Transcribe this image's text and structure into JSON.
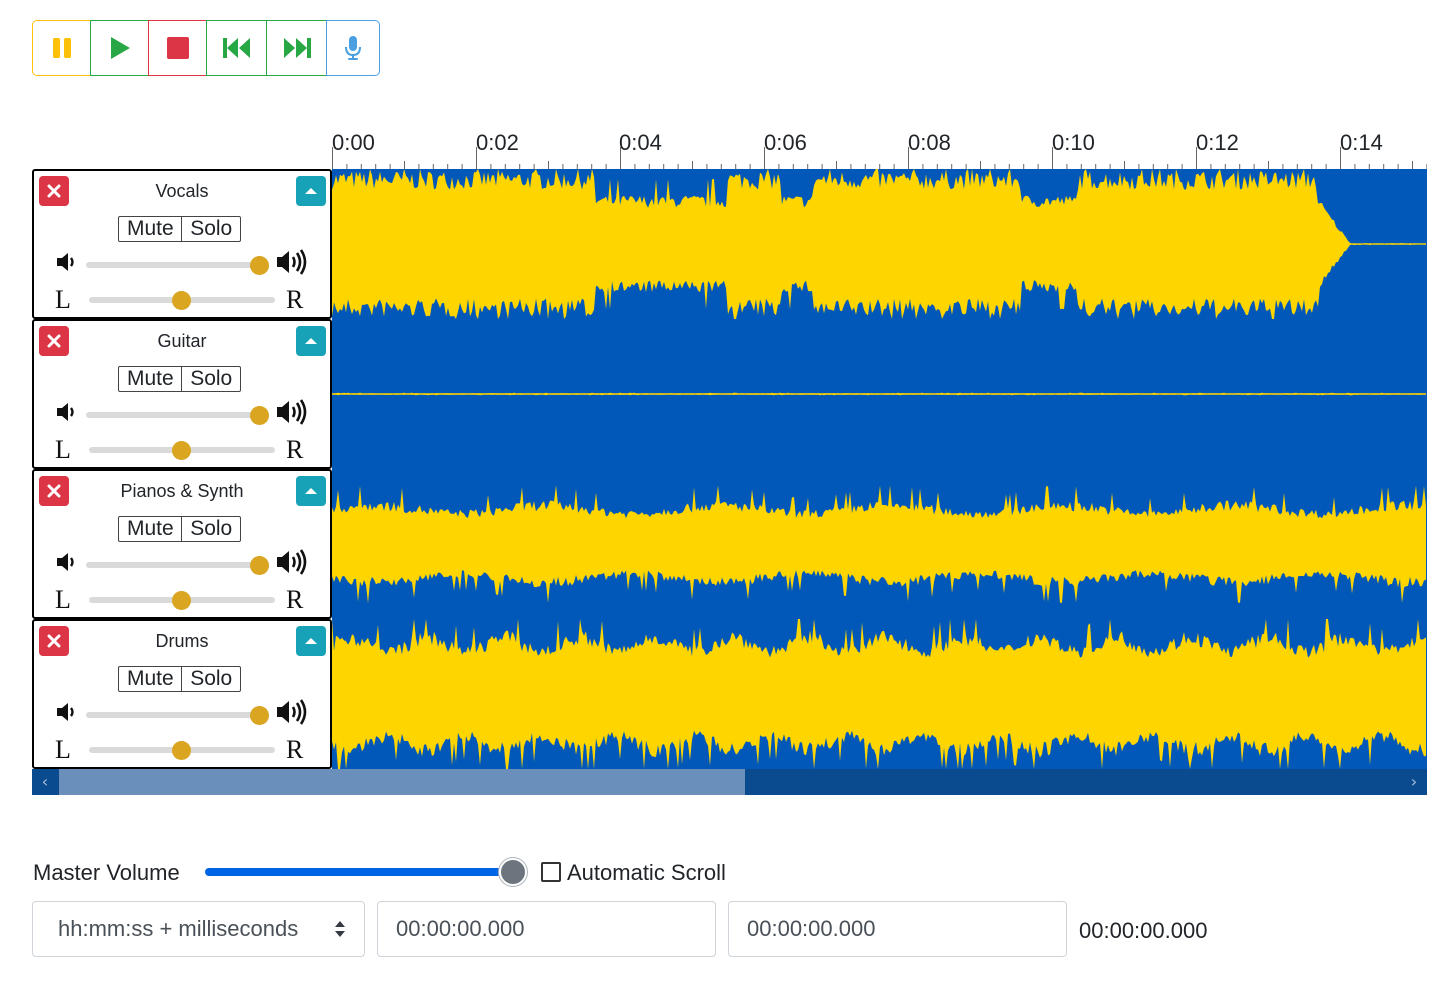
{
  "toolbar": {
    "buttons": [
      {
        "name": "pause",
        "icon": "pause-icon",
        "color": "#ffc107"
      },
      {
        "name": "play",
        "icon": "play-icon",
        "color": "#28a745"
      },
      {
        "name": "stop",
        "icon": "stop-icon",
        "color": "#dc3545"
      },
      {
        "name": "rewind",
        "icon": "rewind-icon",
        "color": "#28a745"
      },
      {
        "name": "fast-forward",
        "icon": "fast-forward-icon",
        "color": "#28a745"
      },
      {
        "name": "record",
        "icon": "microphone-icon",
        "color": "#4a9fe0"
      }
    ]
  },
  "timescale": {
    "labels": [
      "0:00",
      "0:02",
      "0:04",
      "0:06",
      "0:08",
      "0:10",
      "0:12",
      "0:14"
    ]
  },
  "tracks": [
    {
      "name": "Vocals",
      "mute_label": "Mute",
      "solo_label": "Solo",
      "volume": 1.0,
      "pan": 0.5,
      "pan_left": "L",
      "pan_right": "R"
    },
    {
      "name": "Guitar",
      "mute_label": "Mute",
      "solo_label": "Solo",
      "volume": 1.0,
      "pan": 0.5,
      "pan_left": "L",
      "pan_right": "R"
    },
    {
      "name": "Pianos & Synth",
      "mute_label": "Mute",
      "solo_label": "Solo",
      "volume": 1.0,
      "pan": 0.5,
      "pan_left": "L",
      "pan_right": "R"
    },
    {
      "name": "Drums",
      "mute_label": "Mute",
      "solo_label": "Solo",
      "volume": 1.0,
      "pan": 0.5,
      "pan_left": "L",
      "pan_right": "R"
    }
  ],
  "colors": {
    "wave_background": "#0258b8",
    "wave_fill": "#ffd500",
    "scrollbar_track": "#0a4a8f",
    "scrollbar_thumb": "#6a8fba",
    "slider_thumb": "#daa520"
  },
  "scrollbar": {
    "thumb_fraction": 0.5
  },
  "bottom": {
    "master_volume_label": "Master Volume",
    "master_volume": 1.0,
    "autoscroll_label": "Automatic Scroll",
    "autoscroll_checked": false,
    "time_format": "hh:mm:ss + milliseconds",
    "selection_start": "00:00:00.000",
    "selection_end": "00:00:00.000",
    "audio_position": "00:00:00.000"
  }
}
